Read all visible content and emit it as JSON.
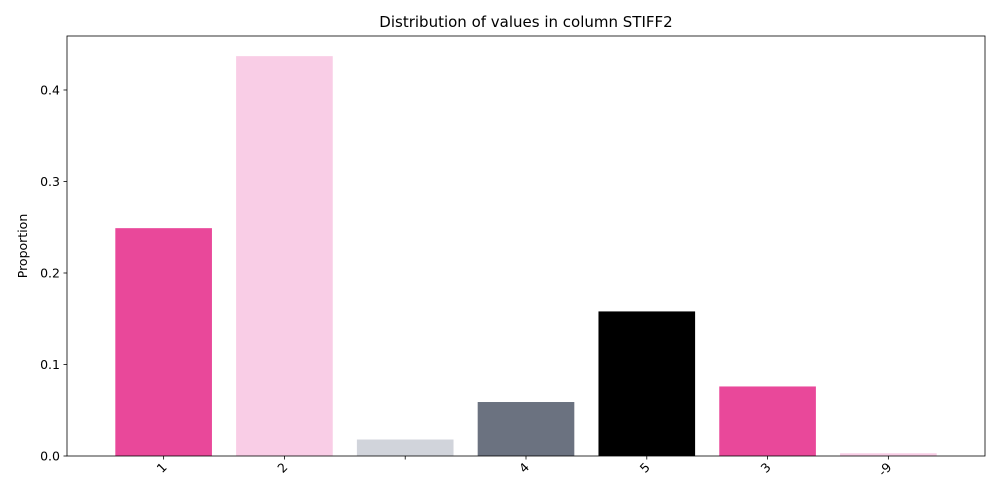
{
  "chart_data": {
    "type": "bar",
    "title": "Distribution of values in column STIFF2",
    "xlabel": "",
    "ylabel": "Proportion",
    "categories": [
      "1",
      "2",
      "",
      "4",
      "5",
      "3",
      "-9"
    ],
    "values": [
      0.249,
      0.437,
      0.018,
      0.059,
      0.158,
      0.076,
      0.003
    ],
    "colors": [
      "#e9489a",
      "#f9cde6",
      "#d1d4db",
      "#6b7280",
      "#000000",
      "#e9489a",
      "#f9cde6"
    ],
    "ylim": [
      0,
      0.459
    ],
    "yticks": [
      0.0,
      0.1,
      0.2,
      0.3,
      0.4
    ],
    "ytick_labels": [
      "0.0",
      "0.1",
      "0.2",
      "0.3",
      "0.4"
    ],
    "grid": false,
    "legend": "none"
  }
}
